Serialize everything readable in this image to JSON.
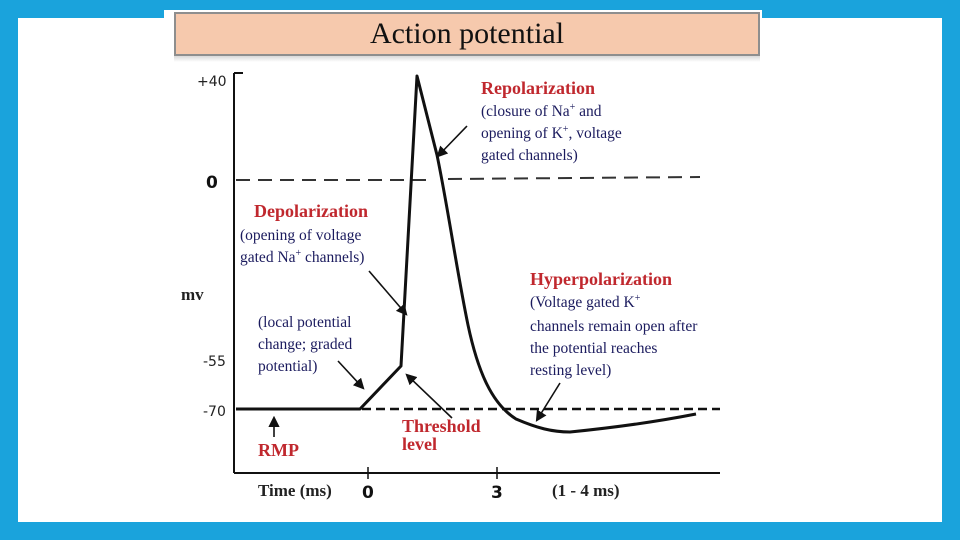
{
  "title": "Action potential",
  "axis": {
    "y_label": "mv",
    "y_ticks": [
      "+40",
      "0",
      "-55",
      "-70"
    ],
    "x_label": "Time (ms)",
    "x_ticks": [
      "0",
      "3"
    ],
    "x_range_note": "(1 - 4 ms)"
  },
  "annotations": {
    "repolarization": {
      "heading": "Repolarization",
      "line1_a": "(closure of Na",
      "line1_sup": "+",
      "line1_b": " and",
      "line2_a": "opening of K",
      "line2_sup": "+",
      "line2_b": ", voltage",
      "line3": "gated channels)"
    },
    "depolarization": {
      "heading": "Depolarization",
      "line1": "(opening of voltage",
      "line2_a": "gated Na",
      "line2_sup": "+",
      "line2_b": " channels)"
    },
    "hyperpolarization": {
      "heading": "Hyperpolarization",
      "line1_a": "(Voltage gated K",
      "line1_sup": "+",
      "line2": "channels remain open after",
      "line3": "the potential reaches",
      "line4": "resting level)"
    },
    "graded": {
      "line1": "(local potential",
      "line2": "change; graded",
      "line3": "potential)"
    },
    "threshold": {
      "line1": "Threshold",
      "line2": "level"
    },
    "rmp": "RMP"
  },
  "colors": {
    "frame": "#1aa3dc",
    "title_bar": "#f6c9ad",
    "heading_red": "#c0282e",
    "description_navy": "#1b1b5e"
  }
}
